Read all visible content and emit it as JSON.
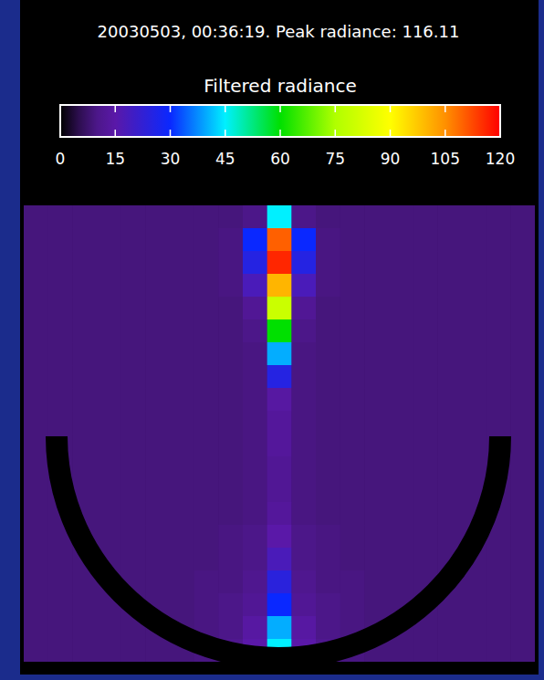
{
  "chart_data": {
    "type": "heatmap",
    "title": "20030503, 00:36:19. Peak radiance: 116.11",
    "colorbar_label": "Filtered radiance",
    "colorbar_range": [
      0,
      120
    ],
    "colorbar_ticks": [
      0,
      15,
      30,
      45,
      60,
      75,
      90,
      105,
      120
    ],
    "tick_labels": false,
    "cells": [
      [
        8,
        8,
        8,
        8,
        8,
        8,
        8,
        8,
        8,
        10,
        45,
        10,
        8,
        8,
        8,
        8,
        8,
        8,
        8,
        8,
        8
      ],
      [
        8,
        8,
        8,
        8,
        8,
        8,
        8,
        8,
        9,
        30,
        110,
        30,
        9,
        8,
        8,
        8,
        8,
        8,
        8,
        8,
        8
      ],
      [
        8,
        8,
        8,
        8,
        8,
        8,
        8,
        8,
        9,
        25,
        116,
        25,
        9,
        8,
        8,
        8,
        8,
        8,
        8,
        8,
        8
      ],
      [
        8,
        8,
        8,
        8,
        8,
        8,
        8,
        8,
        9,
        18,
        100,
        18,
        9,
        8,
        8,
        8,
        8,
        8,
        8,
        8,
        8
      ],
      [
        8,
        8,
        8,
        8,
        8,
        8,
        8,
        8,
        8,
        12,
        80,
        12,
        8,
        8,
        8,
        8,
        8,
        8,
        8,
        8,
        8
      ],
      [
        8,
        8,
        8,
        8,
        8,
        8,
        8,
        8,
        8,
        10,
        60,
        10,
        8,
        8,
        8,
        8,
        8,
        8,
        8,
        8,
        8
      ],
      [
        8,
        8,
        8,
        8,
        8,
        8,
        8,
        8,
        8,
        9,
        40,
        9,
        8,
        8,
        8,
        8,
        8,
        8,
        8,
        8,
        8
      ],
      [
        8,
        8,
        8,
        8,
        8,
        8,
        8,
        8,
        8,
        9,
        25,
        9,
        8,
        8,
        8,
        8,
        8,
        8,
        8,
        8,
        8
      ],
      [
        8,
        8,
        8,
        8,
        8,
        8,
        8,
        8,
        8,
        9,
        14,
        9,
        8,
        8,
        8,
        8,
        8,
        8,
        8,
        8,
        8
      ],
      [
        8,
        8,
        8,
        8,
        8,
        8,
        8,
        8,
        8,
        9,
        13,
        9,
        8,
        8,
        8,
        8,
        8,
        8,
        8,
        8,
        8
      ],
      [
        8,
        8,
        8,
        8,
        8,
        8,
        8,
        8,
        8,
        9,
        13,
        9,
        8,
        8,
        8,
        8,
        8,
        8,
        8,
        8,
        8
      ],
      [
        8,
        8,
        8,
        8,
        8,
        8,
        8,
        8,
        8,
        9,
        12,
        9,
        8,
        8,
        8,
        8,
        8,
        8,
        8,
        8,
        8
      ],
      [
        8,
        8,
        8,
        8,
        8,
        8,
        8,
        8,
        8,
        9,
        12,
        9,
        8,
        8,
        8,
        8,
        8,
        8,
        8,
        8,
        8
      ],
      [
        8,
        8,
        8,
        8,
        8,
        8,
        8,
        8,
        8,
        9,
        13,
        9,
        8,
        8,
        8,
        8,
        8,
        8,
        8,
        8,
        8
      ],
      [
        8,
        8,
        8,
        8,
        8,
        8,
        8,
        8,
        9,
        10,
        15,
        10,
        9,
        8,
        8,
        8,
        8,
        8,
        8,
        8,
        8
      ],
      [
        8,
        8,
        8,
        8,
        8,
        8,
        8,
        8,
        9,
        10,
        18,
        10,
        9,
        8,
        8,
        8,
        8,
        8,
        8,
        8,
        8
      ],
      [
        8,
        8,
        8,
        8,
        8,
        8,
        8,
        9,
        9,
        11,
        24,
        11,
        9,
        9,
        8,
        8,
        8,
        8,
        8,
        8,
        8
      ],
      [
        8,
        8,
        8,
        8,
        8,
        8,
        8,
        9,
        10,
        12,
        30,
        12,
        10,
        9,
        8,
        8,
        8,
        8,
        8,
        8,
        8
      ],
      [
        8,
        8,
        8,
        8,
        8,
        8,
        8,
        9,
        10,
        14,
        40,
        14,
        10,
        9,
        8,
        8,
        8,
        8,
        8,
        8,
        8
      ],
      [
        8,
        8,
        8,
        8,
        8,
        8,
        8,
        9,
        11,
        15,
        45,
        15,
        11,
        9,
        8,
        8,
        8,
        8,
        8,
        8,
        8
      ]
    ]
  }
}
